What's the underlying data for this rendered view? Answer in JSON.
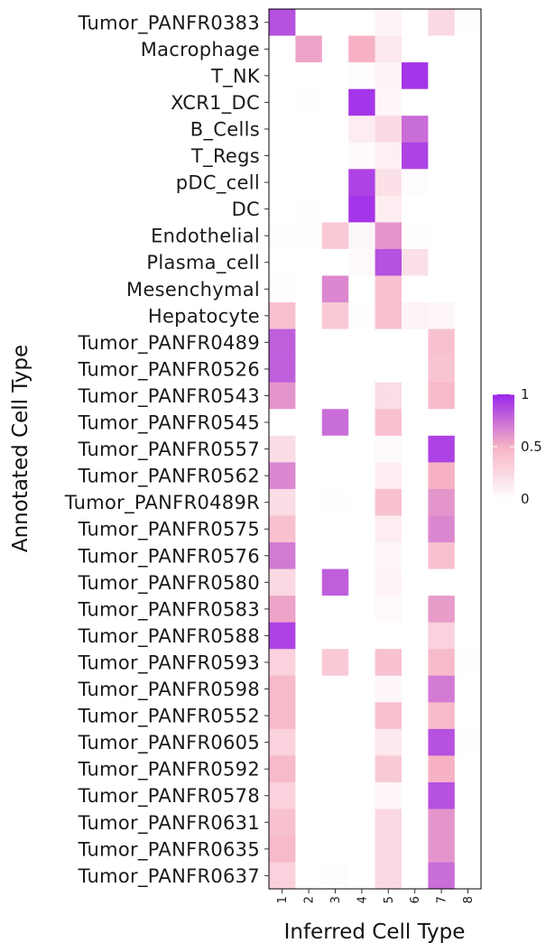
{
  "chart_data": {
    "type": "heatmap",
    "xlabel": "Inferred Cell Type",
    "ylabel": "Annotated Cell Type",
    "x_categories": [
      "1",
      "2",
      "3",
      "4",
      "5",
      "6",
      "7",
      "8"
    ],
    "y_categories": [
      "Tumor_PANFR0383",
      "Macrophage",
      "T_NK",
      "XCR1_DC",
      "B_Cells",
      "T_Regs",
      "pDC_cell",
      "DC",
      "Endothelial",
      "Plasma_cell",
      "Mesenchymal",
      "Hepatocyte",
      "Tumor_PANFR0489",
      "Tumor_PANFR0526",
      "Tumor_PANFR0543",
      "Tumor_PANFR0545",
      "Tumor_PANFR0557",
      "Tumor_PANFR0562",
      "Tumor_PANFR0489R",
      "Tumor_PANFR0575",
      "Tumor_PANFR0576",
      "Tumor_PANFR0580",
      "Tumor_PANFR0583",
      "Tumor_PANFR0588",
      "Tumor_PANFR0593",
      "Tumor_PANFR0598",
      "Tumor_PANFR0552",
      "Tumor_PANFR0605",
      "Tumor_PANFR0592",
      "Tumor_PANFR0578",
      "Tumor_PANFR0631",
      "Tumor_PANFR0635",
      "Tumor_PANFR0637"
    ],
    "values": [
      [
        0.85,
        0.0,
        0.0,
        0.0,
        0.08,
        0.0,
        0.25,
        0.01
      ],
      [
        0.0,
        0.55,
        0.0,
        0.5,
        0.15,
        0.0,
        0.0,
        0.0
      ],
      [
        0.0,
        0.0,
        0.0,
        0.02,
        0.08,
        0.95,
        0.0,
        0.0
      ],
      [
        0.0,
        0.01,
        0.0,
        0.95,
        0.06,
        0.0,
        0.0,
        0.0
      ],
      [
        0.0,
        0.0,
        0.0,
        0.12,
        0.25,
        0.75,
        0.0,
        0.0
      ],
      [
        0.0,
        0.0,
        0.0,
        0.04,
        0.1,
        0.9,
        0.0,
        0.0
      ],
      [
        0.0,
        0.0,
        0.0,
        0.9,
        0.2,
        0.02,
        0.0,
        0.0
      ],
      [
        0.0,
        0.01,
        0.0,
        0.95,
        0.12,
        0.0,
        0.0,
        0.0
      ],
      [
        0.01,
        0.01,
        0.35,
        0.05,
        0.6,
        0.01,
        0.0,
        0.0
      ],
      [
        0.0,
        0.0,
        0.0,
        0.04,
        0.85,
        0.2,
        0.0,
        0.0
      ],
      [
        0.01,
        0.0,
        0.65,
        0.0,
        0.4,
        0.0,
        0.0,
        0.0
      ],
      [
        0.4,
        0.0,
        0.35,
        0.02,
        0.4,
        0.08,
        0.06,
        0.0
      ],
      [
        0.8,
        0.0,
        0.0,
        0.0,
        0.0,
        0.0,
        0.4,
        0.0
      ],
      [
        0.8,
        0.0,
        0.0,
        0.0,
        0.0,
        0.0,
        0.38,
        0.0
      ],
      [
        0.6,
        0.0,
        0.0,
        0.0,
        0.22,
        0.0,
        0.45,
        0.0
      ],
      [
        0.0,
        0.0,
        0.75,
        0.0,
        0.4,
        0.0,
        0.0,
        0.0
      ],
      [
        0.22,
        0.0,
        0.0,
        0.0,
        0.04,
        0.0,
        0.9,
        0.0
      ],
      [
        0.65,
        0.0,
        0.0,
        0.0,
        0.12,
        0.0,
        0.5,
        0.0
      ],
      [
        0.22,
        0.0,
        0.01,
        0.0,
        0.4,
        0.0,
        0.6,
        0.0
      ],
      [
        0.4,
        0.0,
        0.0,
        0.0,
        0.12,
        0.0,
        0.65,
        0.0
      ],
      [
        0.7,
        0.0,
        0.0,
        0.0,
        0.06,
        0.0,
        0.4,
        0.0
      ],
      [
        0.25,
        0.0,
        0.8,
        0.0,
        0.08,
        0.0,
        0.0,
        0.0
      ],
      [
        0.55,
        0.0,
        0.0,
        0.0,
        0.04,
        0.0,
        0.58,
        0.0
      ],
      [
        0.9,
        0.0,
        0.0,
        0.0,
        0.0,
        0.0,
        0.3,
        0.0
      ],
      [
        0.3,
        0.0,
        0.35,
        0.0,
        0.4,
        0.0,
        0.45,
        0.01
      ],
      [
        0.45,
        0.0,
        0.0,
        0.0,
        0.06,
        0.0,
        0.7,
        0.0
      ],
      [
        0.45,
        0.0,
        0.0,
        0.0,
        0.4,
        0.0,
        0.45,
        0.0
      ],
      [
        0.3,
        0.0,
        0.0,
        0.0,
        0.15,
        0.0,
        0.85,
        0.01
      ],
      [
        0.45,
        0.0,
        0.0,
        0.0,
        0.35,
        0.0,
        0.5,
        0.0
      ],
      [
        0.3,
        0.0,
        0.0,
        0.0,
        0.06,
        0.0,
        0.85,
        0.0
      ],
      [
        0.4,
        0.0,
        0.0,
        0.0,
        0.25,
        0.0,
        0.6,
        0.0
      ],
      [
        0.45,
        0.0,
        0.0,
        0.0,
        0.25,
        0.0,
        0.6,
        0.0
      ],
      [
        0.3,
        0.0,
        0.02,
        0.0,
        0.25,
        0.0,
        0.75,
        0.0
      ]
    ],
    "value_range": [
      0,
      1
    ],
    "colorscale": [
      "#ffffff",
      "#f6b2c4",
      "#9b27ec"
    ],
    "legend": {
      "position": "right",
      "ticks": [
        1,
        0.5,
        0
      ],
      "tick_labels": [
        "1",
        "0.5",
        "0"
      ]
    },
    "grid": false
  }
}
